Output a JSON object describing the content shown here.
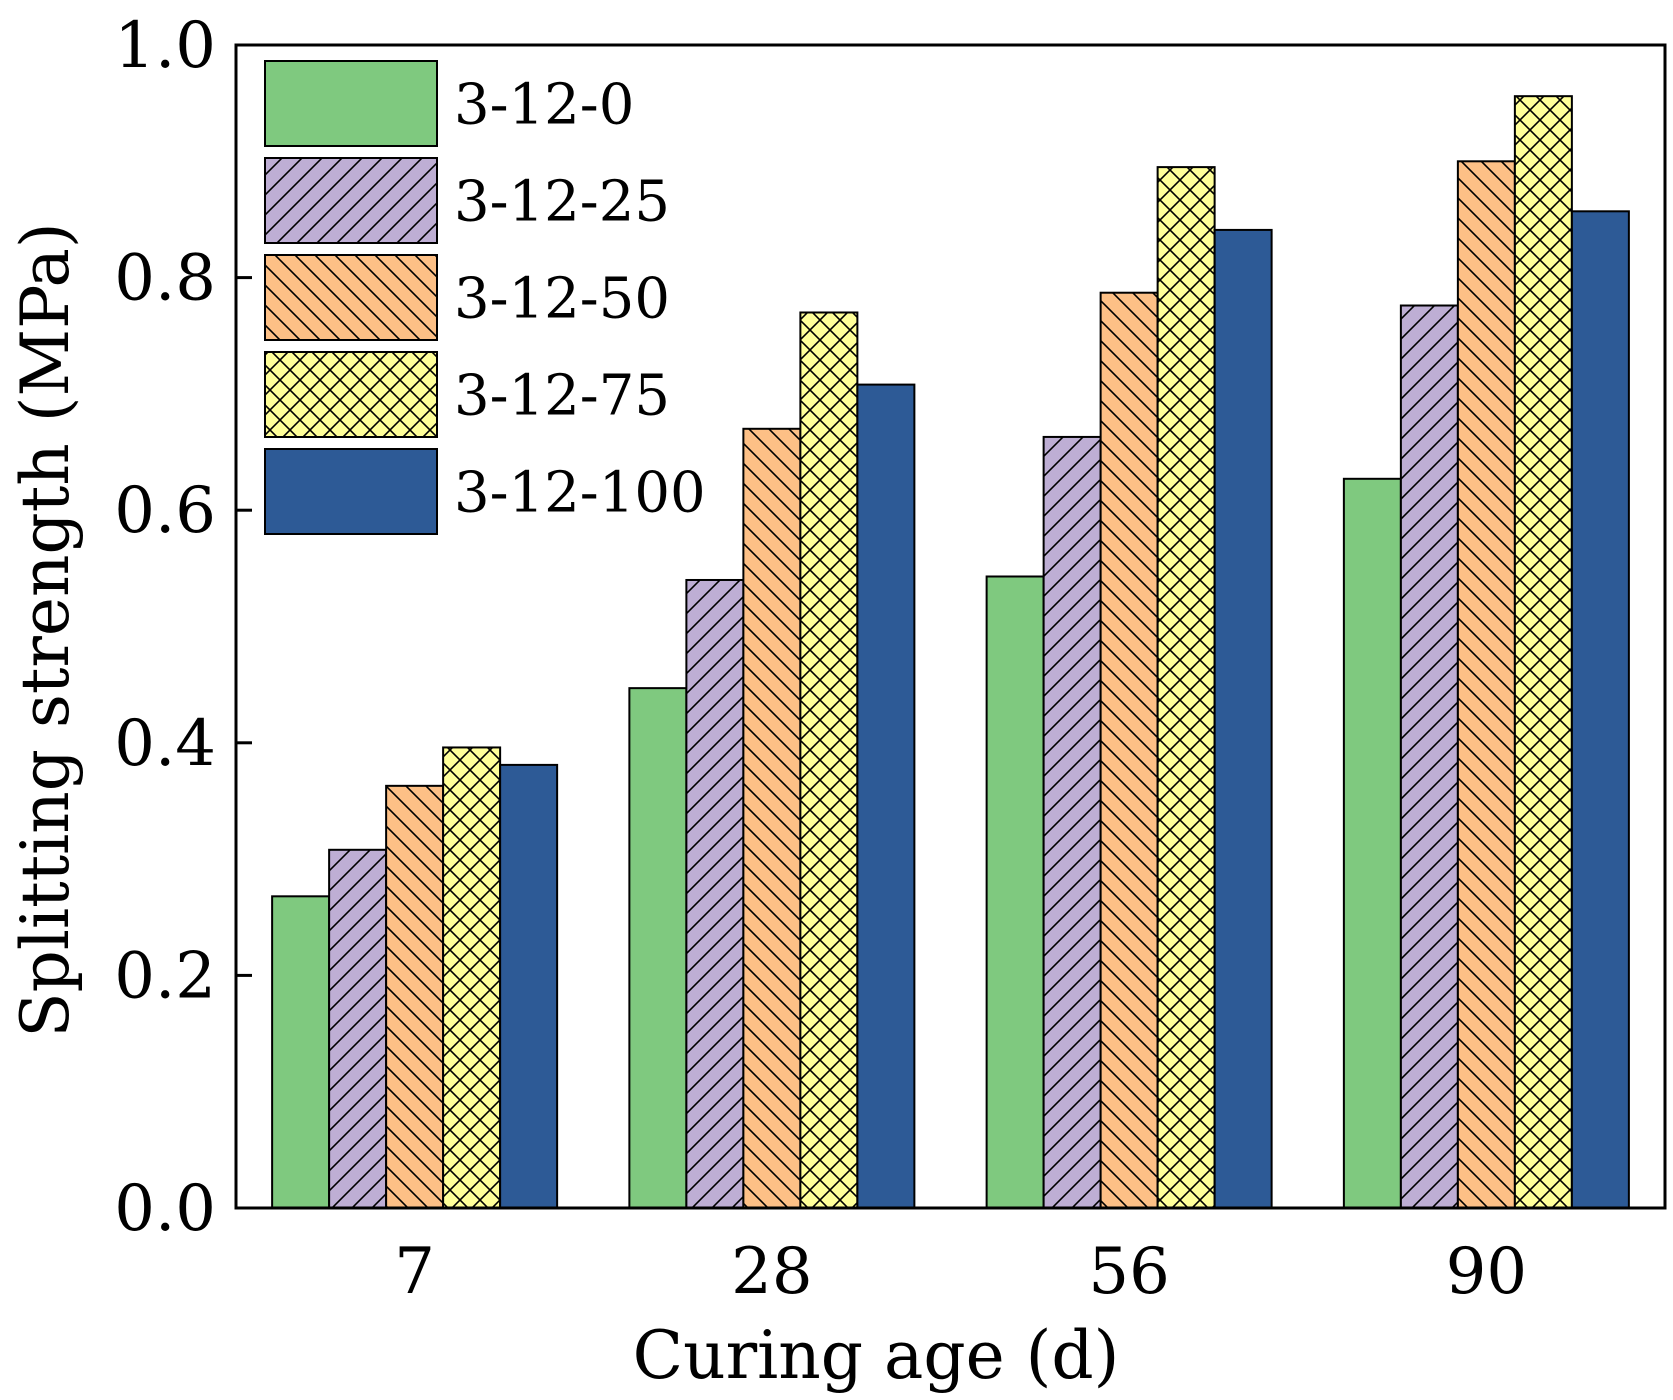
{
  "chart_data": {
    "type": "bar",
    "title": "",
    "xlabel": "Curing age (d)",
    "ylabel": "Splitting strength (MPa)",
    "categories": [
      "7",
      "28",
      "56",
      "90"
    ],
    "ylim": [
      0,
      1.0
    ],
    "yticks": [
      "0.0",
      "0.2",
      "0.4",
      "0.6",
      "0.8",
      "1.0"
    ],
    "grid": false,
    "legend_position": "top-left",
    "series": [
      {
        "name": "3-12-0",
        "color": "#7FC97F",
        "pattern": "none",
        "values": [
          0.268,
          0.447,
          0.543,
          0.627
        ]
      },
      {
        "name": "3-12-25",
        "color": "#BEAED4",
        "pattern": "forward",
        "values": [
          0.308,
          0.54,
          0.663,
          0.776
        ]
      },
      {
        "name": "3-12-50",
        "color": "#FDC086",
        "pattern": "backward",
        "values": [
          0.363,
          0.67,
          0.787,
          0.9
        ]
      },
      {
        "name": "3-12-75",
        "color": "#FFFF99",
        "pattern": "cross",
        "values": [
          0.396,
          0.77,
          0.895,
          0.956
        ]
      },
      {
        "name": "3-12-100",
        "color": "#2D5A96",
        "pattern": "none",
        "values": [
          0.381,
          0.708,
          0.841,
          0.857
        ]
      }
    ]
  }
}
